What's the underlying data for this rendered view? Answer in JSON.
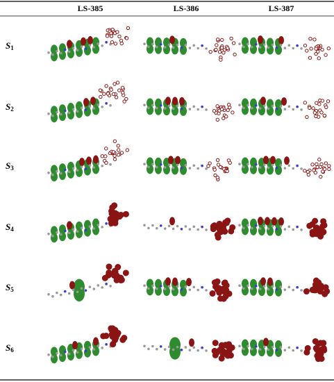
{
  "table": {
    "header": [
      "LS-385",
      "LS-386",
      "LS-387"
    ],
    "rows": [
      {
        "symbol": "S",
        "index": "1"
      },
      {
        "symbol": "S",
        "index": "2"
      },
      {
        "symbol": "S",
        "index": "3"
      },
      {
        "symbol": "S",
        "index": "4"
      },
      {
        "symbol": "S",
        "index": "5"
      },
      {
        "symbol": "S",
        "index": "6"
      }
    ]
  }
}
